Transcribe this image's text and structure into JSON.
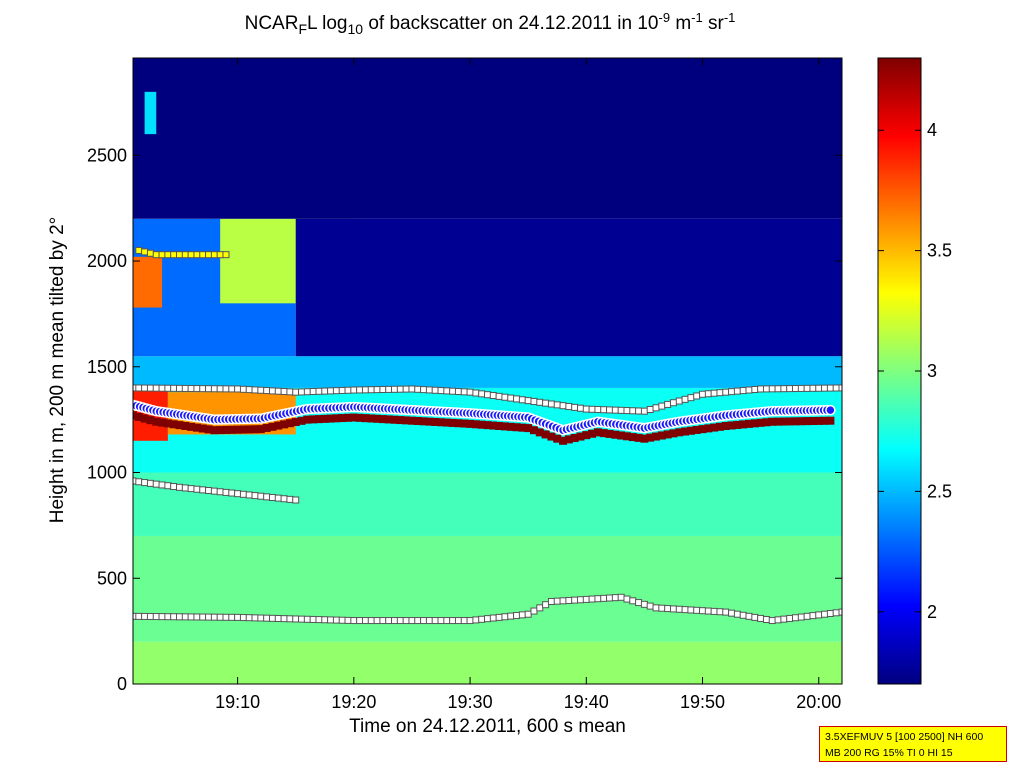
{
  "title": {
    "pre": "NCAR",
    "sub": "F",
    "mid": "L log",
    "sub2": "10",
    "post": " of backscatter on 24.12.2011 in 10",
    "sup1": "-9",
    "unit_m": " m",
    "sup2": "-1",
    "unit_sr": " sr",
    "sup3": "-1"
  },
  "xlabel": "Time on 24.12.2011, 600 s mean",
  "ylabel": "Height in m, 200 m mean tilted by 2°",
  "info": {
    "line1": "3.5XEFMUV 5 [100 2500] NH 600",
    "line2": "MB 200 RG 15% TI 0 HI 15"
  },
  "chart_data": {
    "type": "heatmap",
    "x_range_minutes": [
      1141,
      1202
    ],
    "x_ticks": [
      {
        "label": "19:10",
        "minute": 1150
      },
      {
        "label": "19:20",
        "minute": 1160
      },
      {
        "label": "19:30",
        "minute": 1170
      },
      {
        "label": "19:40",
        "minute": 1180
      },
      {
        "label": "19:50",
        "minute": 1190
      },
      {
        "label": "20:00",
        "minute": 1200
      }
    ],
    "y_range": [
      0,
      2960
    ],
    "y_ticks": [
      0,
      500,
      1000,
      1500,
      2000,
      2500
    ],
    "colorbar_range": [
      1.7,
      4.3
    ],
    "colorbar_ticks": [
      2,
      2.5,
      3,
      3.5,
      4
    ],
    "colormap": [
      "#00007f",
      "#0000ff",
      "#007fff",
      "#00ffff",
      "#7fff7f",
      "#ffff00",
      "#ff7f00",
      "#ff0000",
      "#7f0000"
    ],
    "regions": [
      {
        "x": [
          1141,
          1202
        ],
        "y": [
          0,
          200
        ],
        "v": 3.05
      },
      {
        "x": [
          1141,
          1202
        ],
        "y": [
          200,
          700
        ],
        "v": 2.95
      },
      {
        "x": [
          1141,
          1202
        ],
        "y": [
          700,
          1000
        ],
        "v": 2.85
      },
      {
        "x": [
          1141,
          1202
        ],
        "y": [
          1000,
          1400
        ],
        "v": 2.7
      },
      {
        "x": [
          1141,
          1202
        ],
        "y": [
          1400,
          1550
        ],
        "v": 2.5
      },
      {
        "x": [
          1141,
          1155
        ],
        "y": [
          1550,
          2200
        ],
        "v": 2.3
      },
      {
        "x": [
          1148.5,
          1160
        ],
        "y": [
          1800,
          2200
        ],
        "v": 3.15
      },
      {
        "x": [
          1141,
          1202
        ],
        "y": [
          2200,
          2960
        ],
        "v": 1.7
      },
      {
        "x": [
          1155,
          1202
        ],
        "y": [
          1550,
          2200
        ],
        "v": 1.75
      },
      {
        "x": [
          1141,
          1144
        ],
        "y": [
          1150,
          1400
        ],
        "v": 3.9
      },
      {
        "x": [
          1144,
          1155
        ],
        "y": [
          1180,
          1380
        ],
        "v": 3.6
      },
      {
        "x": [
          1141,
          1143.5
        ],
        "y": [
          1780,
          2020
        ],
        "v": 3.7
      },
      {
        "x": [
          1142,
          1143
        ],
        "y": [
          2600,
          2800
        ],
        "v": 2.6
      }
    ],
    "upper_layer_top": [
      {
        "x": 1141,
        "y": 1400
      },
      {
        "x": 1150,
        "y": 1395
      },
      {
        "x": 1155,
        "y": 1380
      },
      {
        "x": 1160,
        "y": 1390
      },
      {
        "x": 1165,
        "y": 1395
      },
      {
        "x": 1170,
        "y": 1380
      },
      {
        "x": 1175,
        "y": 1340
      },
      {
        "x": 1180,
        "y": 1300
      },
      {
        "x": 1185,
        "y": 1290
      },
      {
        "x": 1190,
        "y": 1370
      },
      {
        "x": 1195,
        "y": 1395
      },
      {
        "x": 1202,
        "y": 1400
      }
    ],
    "cloud_base": [
      {
        "x": 1141,
        "y": 1320
      },
      {
        "x": 1143,
        "y": 1290
      },
      {
        "x": 1148,
        "y": 1250
      },
      {
        "x": 1152,
        "y": 1255
      },
      {
        "x": 1156,
        "y": 1300
      },
      {
        "x": 1160,
        "y": 1310
      },
      {
        "x": 1165,
        "y": 1295
      },
      {
        "x": 1170,
        "y": 1280
      },
      {
        "x": 1175,
        "y": 1260
      },
      {
        "x": 1178,
        "y": 1200
      },
      {
        "x": 1181,
        "y": 1240
      },
      {
        "x": 1185,
        "y": 1210
      },
      {
        "x": 1188,
        "y": 1240
      },
      {
        "x": 1192,
        "y": 1270
      },
      {
        "x": 1196,
        "y": 1290
      },
      {
        "x": 1201,
        "y": 1295
      }
    ],
    "boundary_1000m": [
      {
        "x": 1141,
        "y": 960
      },
      {
        "x": 1145,
        "y": 930
      },
      {
        "x": 1150,
        "y": 900
      },
      {
        "x": 1155,
        "y": 870
      }
    ],
    "boundary_low": [
      {
        "x": 1141,
        "y": 320
      },
      {
        "x": 1150,
        "y": 315
      },
      {
        "x": 1160,
        "y": 300
      },
      {
        "x": 1170,
        "y": 300
      },
      {
        "x": 1175,
        "y": 330
      },
      {
        "x": 1177,
        "y": 390
      },
      {
        "x": 1183,
        "y": 410
      },
      {
        "x": 1186,
        "y": 360
      },
      {
        "x": 1192,
        "y": 340
      },
      {
        "x": 1196,
        "y": 300
      },
      {
        "x": 1202,
        "y": 340
      }
    ],
    "upper_marks_2000m": [
      {
        "x": 1141.5,
        "y": 2050
      },
      {
        "x": 1143,
        "y": 2030
      },
      {
        "x": 1146,
        "y": 2030
      },
      {
        "x": 1149,
        "y": 2030
      }
    ]
  }
}
